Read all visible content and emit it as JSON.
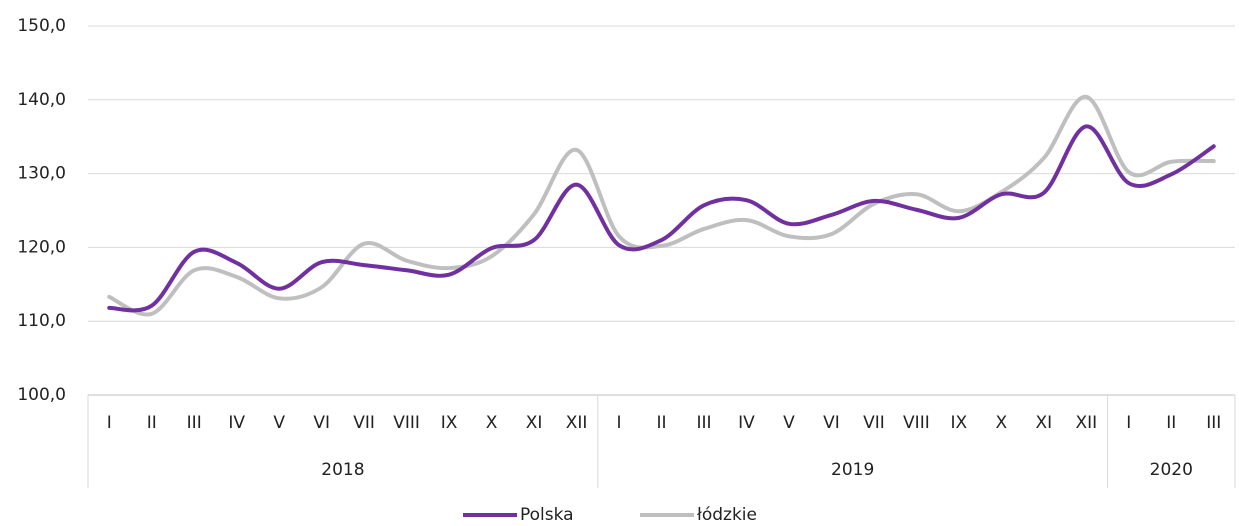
{
  "chart_data": {
    "type": "line",
    "groups": [
      {
        "name": "2018",
        "categories": [
          "I",
          "II",
          "III",
          "IV",
          "V",
          "VI",
          "VII",
          "VIII",
          "IX",
          "X",
          "XI",
          "XII"
        ]
      },
      {
        "name": "2019",
        "categories": [
          "I",
          "II",
          "III",
          "IV",
          "V",
          "VI",
          "VII",
          "VIII",
          "IX",
          "X",
          "XI",
          "XII"
        ]
      },
      {
        "name": "2020",
        "categories": [
          "I",
          "II",
          "III"
        ]
      }
    ],
    "series": [
      {
        "name": "Polska",
        "color": "#7030a0",
        "values": [
          111.8,
          112.1,
          119.4,
          117.9,
          114.4,
          118.0,
          117.6,
          116.9,
          116.3,
          119.9,
          121.0,
          128.5,
          120.3,
          121.0,
          125.7,
          126.4,
          123.2,
          124.4,
          126.3,
          125.1,
          124.0,
          127.2,
          127.4,
          136.4,
          128.7,
          129.9,
          133.7
        ]
      },
      {
        "name": "łódzkie",
        "color": "#bfbfbf",
        "values": [
          113.3,
          111.0,
          116.9,
          116.0,
          113.1,
          114.6,
          120.5,
          118.2,
          117.2,
          118.8,
          124.5,
          133.2,
          121.5,
          120.2,
          122.5,
          123.7,
          121.5,
          121.8,
          125.9,
          127.2,
          124.9,
          127.5,
          132.1,
          140.4,
          130.2,
          131.6,
          131.7
        ]
      }
    ],
    "ylim": [
      100,
      150
    ],
    "yticks": [
      {
        "value": 100,
        "label": "100,0"
      },
      {
        "value": 110,
        "label": "110,0"
      },
      {
        "value": 120,
        "label": "120,0"
      },
      {
        "value": 130,
        "label": "130,0"
      },
      {
        "value": 140,
        "label": "140,0"
      },
      {
        "value": 150,
        "label": "150,0"
      }
    ],
    "grid": true,
    "legend": "bottom"
  }
}
